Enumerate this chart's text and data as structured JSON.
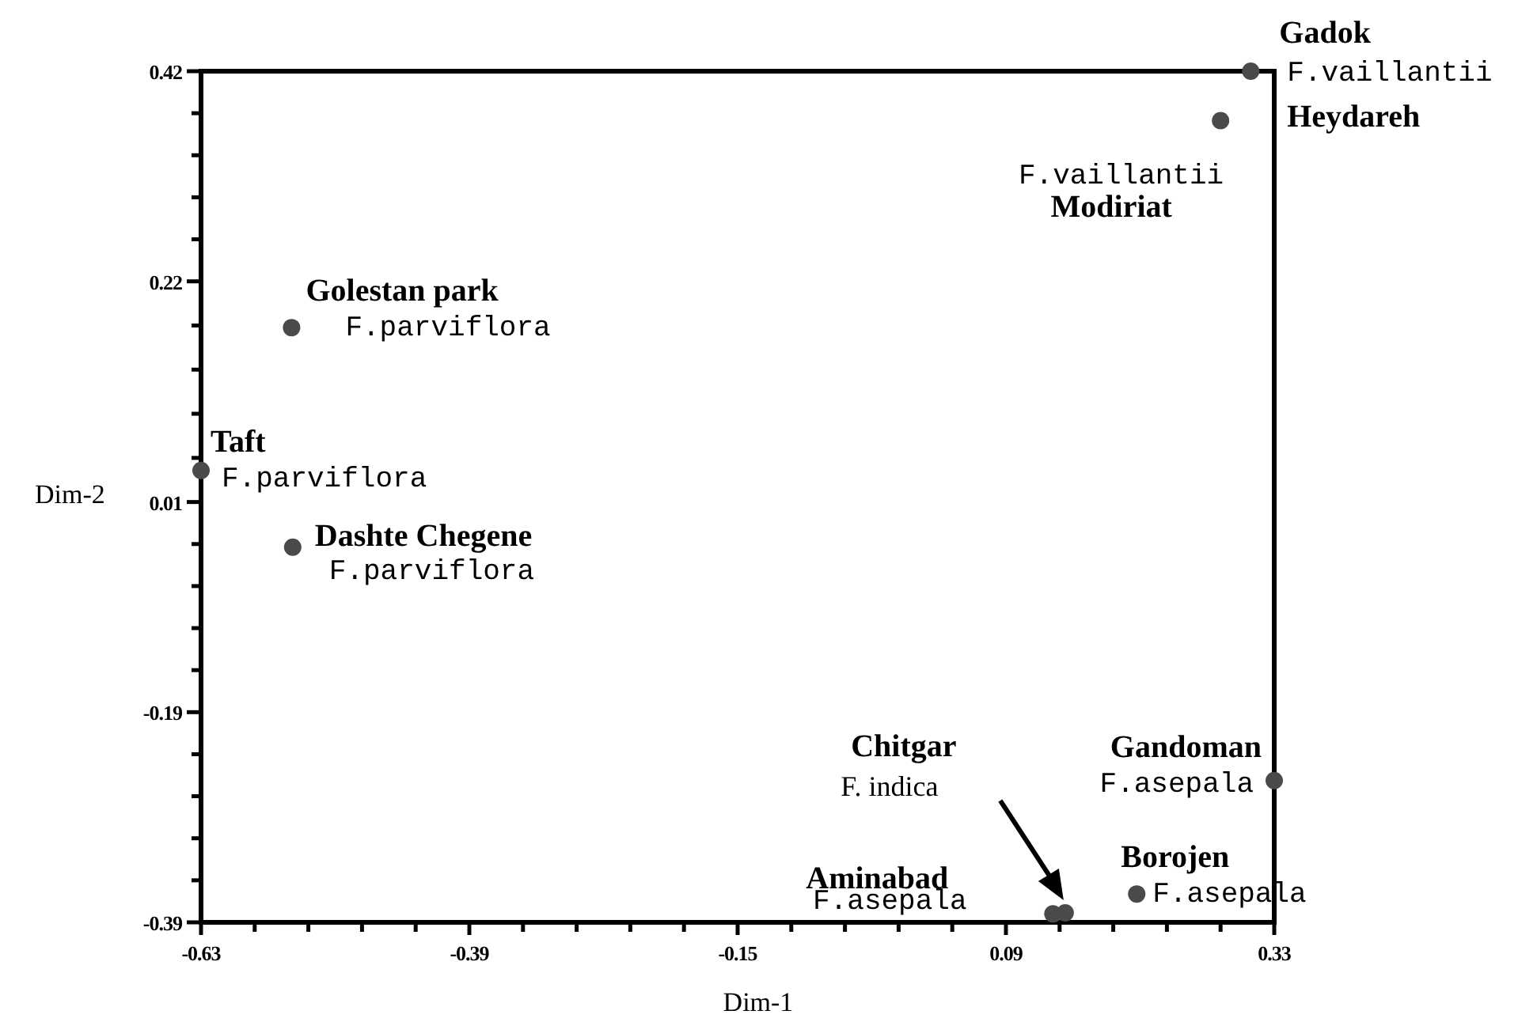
{
  "chart_data": {
    "type": "scatter",
    "xlabel": "Dim-1",
    "ylabel": "Dim-2",
    "x": [
      0.309,
      0.282,
      -0.549,
      -0.63,
      -0.548,
      0.33,
      0.207,
      0.143,
      0.132
    ],
    "values": [
      0.42,
      0.373,
      0.176,
      0.04,
      -0.033,
      -0.255,
      -0.363,
      -0.381,
      -0.382
    ],
    "color": "#4a4a4a",
    "marker": "circle",
    "grid": false,
    "xlim": [
      -0.63,
      0.33
    ],
    "xticks": [
      -0.63,
      {
        "value": -0.582,
        "label": null
      },
      {
        "value": -0.534,
        "label": null
      },
      {
        "value": -0.486,
        "label": null
      },
      {
        "value": -0.438,
        "label": null
      },
      -0.39,
      {
        "value": -0.342,
        "label": null
      },
      {
        "value": -0.294,
        "label": null
      },
      {
        "value": -0.246,
        "label": null
      },
      {
        "value": -0.198,
        "label": null
      },
      -0.15,
      {
        "value": -0.102,
        "label": null
      },
      {
        "value": -0.054,
        "label": null
      },
      {
        "value": -0.006,
        "label": null
      },
      {
        "value": 0.042,
        "label": null
      },
      0.09,
      {
        "value": 0.138,
        "label": null
      },
      {
        "value": 0.186,
        "label": null
      },
      {
        "value": 0.234,
        "label": null
      },
      {
        "value": 0.282,
        "label": null
      },
      0.33
    ],
    "ylim": [
      -0.39,
      0.42
    ],
    "yticks": [
      -0.39,
      {
        "value": -0.35,
        "label": null
      },
      {
        "value": -0.31,
        "label": null
      },
      {
        "value": -0.27,
        "label": null
      },
      {
        "value": -0.23,
        "label": null
      },
      -0.19,
      {
        "value": -0.15,
        "label": null
      },
      {
        "value": -0.11,
        "label": null
      },
      {
        "value": -0.07,
        "label": null
      },
      {
        "value": -0.03,
        "label": null
      },
      0.01,
      {
        "value": 0.052,
        "label": null
      },
      {
        "value": 0.094,
        "label": null
      },
      {
        "value": 0.136,
        "label": null
      },
      {
        "value": 0.178,
        "label": null
      },
      0.22,
      {
        "value": 0.26,
        "label": null
      },
      {
        "value": 0.3,
        "label": null
      },
      {
        "value": 0.34,
        "label": null
      },
      {
        "value": 0.38,
        "label": null
      },
      0.42
    ],
    "annotations": [
      {
        "text": "Gadok",
        "x": 0.309,
        "y": 0.42
      },
      {
        "text": "F.vaillantii",
        "x": 0.309,
        "y": 0.42
      },
      {
        "text": "Heydareh",
        "x": 0.282,
        "y": 0.373
      },
      {
        "text": "F.vaillantii",
        "x": 0.282,
        "y": 0.373
      },
      {
        "text": "Modiriat",
        "x": 0.282,
        "y": 0.373
      },
      {
        "text": "Golestan park",
        "x": -0.549,
        "y": 0.176
      },
      {
        "text": "F.parviflora",
        "x": -0.549,
        "y": 0.176
      },
      {
        "text": "Taft",
        "x": -0.63,
        "y": 0.04
      },
      {
        "text": "F.parviflora",
        "x": -0.63,
        "y": 0.04
      },
      {
        "text": "Dashte Chegene",
        "x": -0.548,
        "y": -0.033
      },
      {
        "text": "F.parviflora",
        "x": -0.548,
        "y": -0.033
      },
      {
        "text": "Gandoman",
        "x": 0.33,
        "y": -0.255
      },
      {
        "text": "F.asepala",
        "x": 0.33,
        "y": -0.255
      },
      {
        "text": "Borojen",
        "x": 0.207,
        "y": -0.363
      },
      {
        "text": "F.asepala",
        "x": 0.207,
        "y": -0.363
      },
      "Chitgar",
      "F. indica",
      "Aminabad",
      "F.asepala"
    ]
  }
}
